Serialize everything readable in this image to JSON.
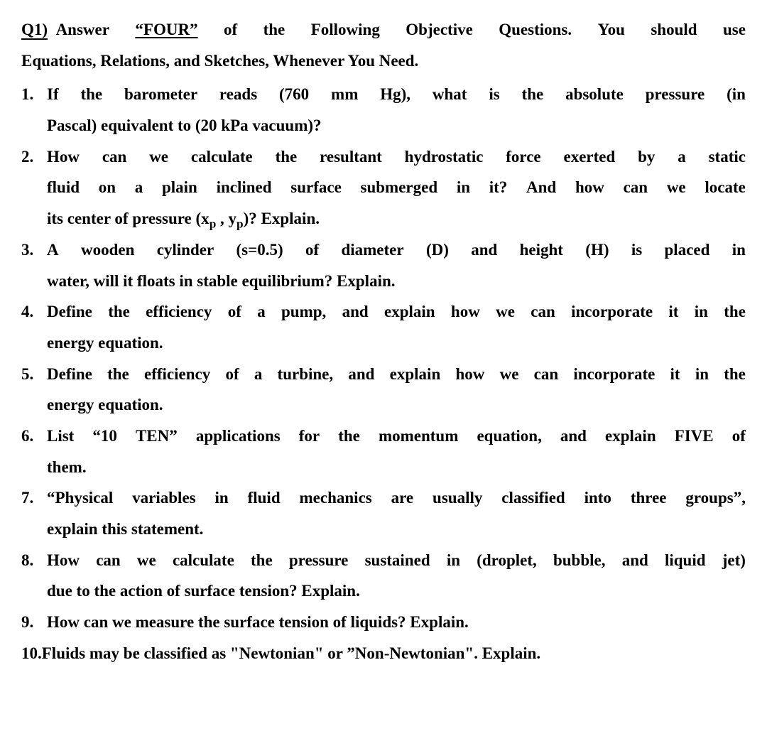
{
  "document": {
    "background_color": "#ffffff",
    "text_color": "#000000",
    "font_family": "Times New Roman",
    "font_size_pt": 17,
    "font_weight": "bold",
    "line_height": 1.9
  },
  "header": {
    "q1_label": "Q1)",
    "line1_words": [
      "Answer",
      "“FOUR”",
      "of",
      "the",
      "Following",
      "Objective",
      "Questions.",
      "You",
      "should",
      "use"
    ],
    "four_word_index": 1,
    "line2": "Equations, Relations, and Sketches, Whenever You Need."
  },
  "questions": [
    {
      "lines": [
        {
          "type": "justify",
          "words": [
            "If",
            "the",
            "barometer",
            "reads",
            "(760",
            "mm",
            "Hg),",
            "what",
            "is",
            "the",
            "absolute",
            "pressure",
            "(in"
          ]
        },
        {
          "type": "normal",
          "text": "Pascal) equivalent to (20 kPa vacuum)?"
        }
      ]
    },
    {
      "lines": [
        {
          "type": "justify",
          "words": [
            "How",
            "can",
            "we",
            "calculate",
            "the",
            "resultant",
            "hydrostatic",
            "force",
            "exerted",
            "by",
            "a",
            "static"
          ]
        },
        {
          "type": "justify",
          "words": [
            "fluid",
            "on",
            "a",
            "plain",
            "inclined",
            "surface",
            "submerged",
            "in",
            "it?",
            "And",
            "how",
            "can",
            "we",
            "locate"
          ]
        },
        {
          "type": "cp",
          "prefix": "its center of pressure (x",
          "sub1": "p",
          "mid": " , y",
          "sub2": "p",
          "suffix": ")? Explain."
        }
      ]
    },
    {
      "lines": [
        {
          "type": "justify",
          "words": [
            "A",
            "wooden",
            "cylinder",
            "(s=0.5)",
            "of",
            "diameter",
            "(D)",
            "and",
            "height",
            "(H)",
            "is",
            "placed",
            "in"
          ]
        },
        {
          "type": "normal",
          "text": "water, will it floats in stable equilibrium? Explain."
        }
      ]
    },
    {
      "lines": [
        {
          "type": "justify",
          "words": [
            "Define",
            "the",
            "efficiency",
            "of",
            "a",
            "pump,",
            "and",
            "explain",
            "how",
            "we",
            "can",
            "incorporate",
            "it",
            "in",
            "the"
          ]
        },
        {
          "type": "normal",
          "text": "energy equation."
        }
      ]
    },
    {
      "lines": [
        {
          "type": "justify",
          "words": [
            "Define",
            "the",
            "efficiency",
            "of",
            "a",
            "turbine,",
            "and",
            "explain",
            "how",
            "we",
            "can",
            "incorporate",
            "it",
            "in",
            "the"
          ]
        },
        {
          "type": "normal",
          "text": "energy equation."
        }
      ]
    },
    {
      "lines": [
        {
          "type": "justify",
          "words": [
            "List",
            "“10",
            "TEN”",
            "applications",
            "for",
            "the",
            "momentum",
            "equation,",
            "and",
            "explain",
            "FIVE",
            "of"
          ]
        },
        {
          "type": "normal",
          "text": "them."
        }
      ]
    },
    {
      "lines": [
        {
          "type": "justify",
          "words": [
            "“Physical",
            "variables",
            "in",
            "fluid",
            "mechanics",
            "are",
            "usually",
            "classified",
            "into",
            "three",
            "groups”,"
          ]
        },
        {
          "type": "normal",
          "text": "explain this statement."
        }
      ]
    },
    {
      "lines": [
        {
          "type": "justify",
          "words": [
            "How",
            "can",
            "we",
            "calculate",
            "the",
            "pressure",
            "sustained",
            "in",
            "(droplet,",
            "bubble,",
            "and",
            "liquid",
            "jet)"
          ]
        },
        {
          "type": "normal",
          "text": "due to the action of surface tension? Explain."
        }
      ]
    },
    {
      "lines": [
        {
          "type": "normal",
          "text": "How can we measure the surface tension of liquids? Explain."
        }
      ]
    },
    {
      "lines": [
        {
          "type": "normal",
          "text": "10.Fluids may be classified as \"Newtonian\" or ”Non-Newtonian\". Explain."
        }
      ],
      "is_q10": true
    }
  ]
}
